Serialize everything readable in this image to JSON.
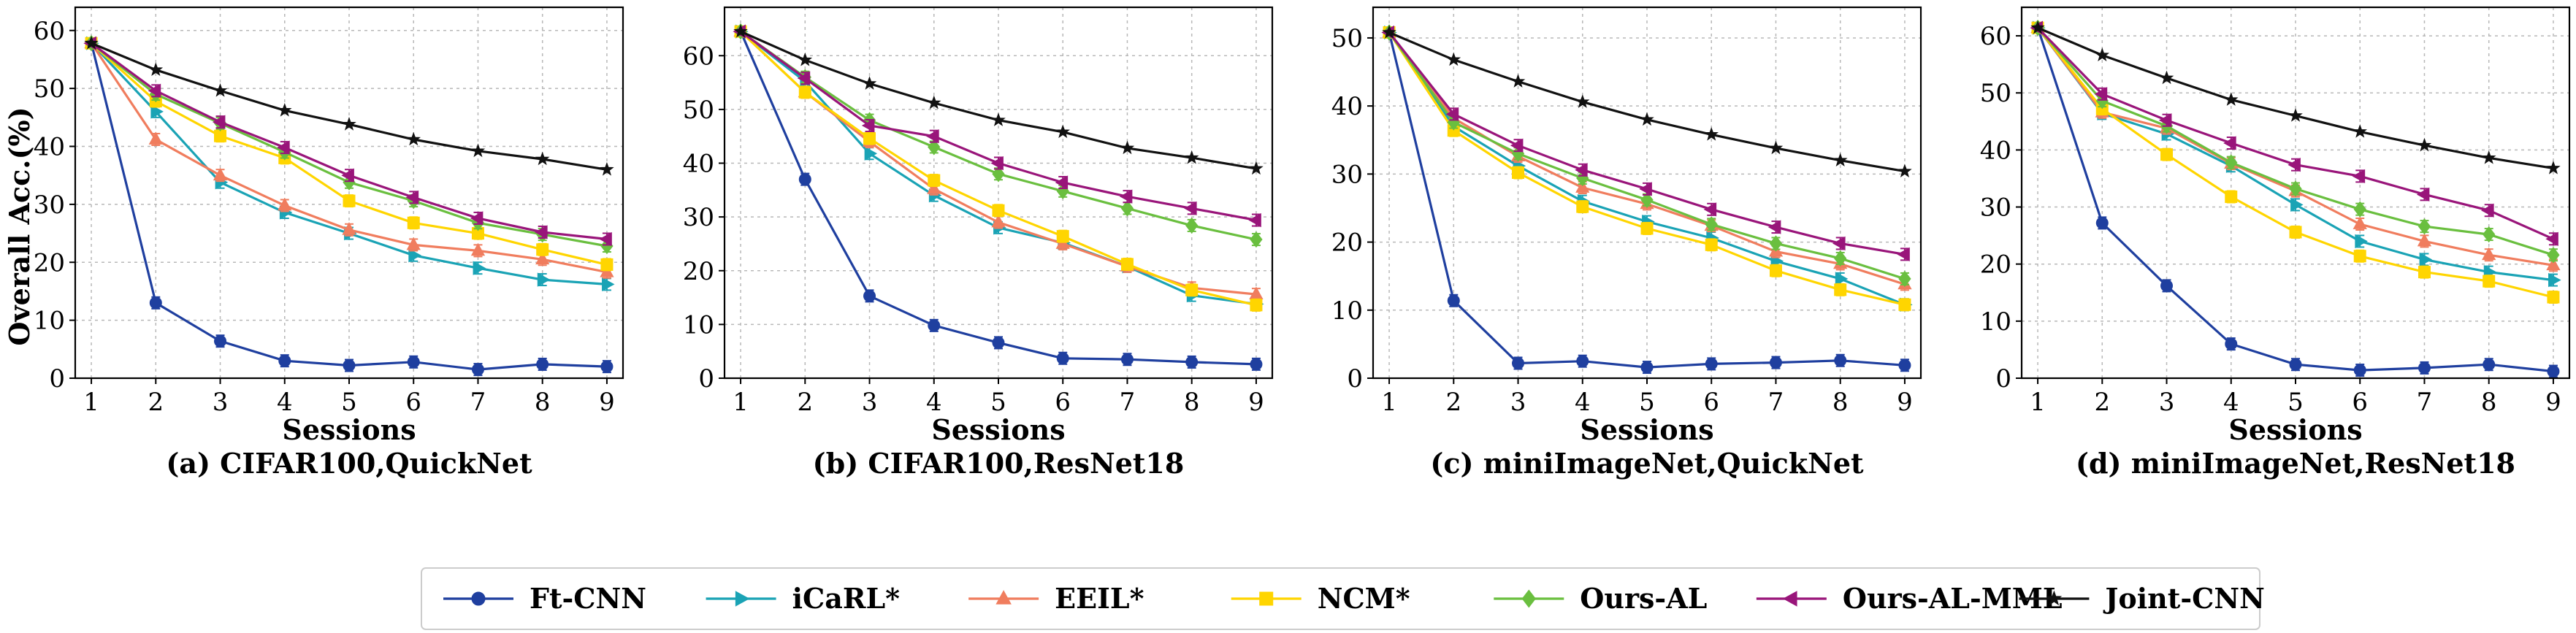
{
  "figure": {
    "ylabel": "Overall Acc.(%)",
    "xlabel": "Sessions"
  },
  "chart_data": [
    {
      "type": "line",
      "caption": "(a) CIFAR100,QuickNet",
      "xlabel": "Sessions",
      "ylabel": "Overall Acc.(%)",
      "x": [
        1,
        2,
        3,
        4,
        5,
        6,
        7,
        8,
        9
      ],
      "ylim": [
        0,
        64
      ],
      "yticks": [
        0,
        10,
        20,
        30,
        40,
        50,
        60
      ],
      "grid": true,
      "series": [
        {
          "name": "Ft-CNN",
          "values": [
            57.8,
            13.0,
            6.4,
            3.0,
            2.2,
            2.8,
            1.5,
            2.4,
            2.0
          ]
        },
        {
          "name": "iCaRL*",
          "values": [
            57.8,
            46.0,
            33.8,
            28.6,
            25.0,
            21.2,
            19.0,
            17.0,
            16.2
          ]
        },
        {
          "name": "EEIL*",
          "values": [
            57.8,
            41.2,
            35.0,
            29.8,
            25.6,
            23.0,
            22.0,
            20.5,
            18.3
          ]
        },
        {
          "name": "NCM*",
          "values": [
            57.8,
            47.8,
            41.8,
            38.0,
            30.6,
            26.8,
            25.0,
            22.2,
            19.6
          ]
        },
        {
          "name": "Ours-AL",
          "values": [
            57.8,
            49.0,
            44.0,
            39.0,
            33.8,
            30.6,
            26.8,
            24.8,
            22.8
          ]
        },
        {
          "name": "Ours-AL-MML",
          "values": [
            57.8,
            49.6,
            44.2,
            39.8,
            35.0,
            31.2,
            27.6,
            25.2,
            24.0
          ]
        },
        {
          "name": "Joint-CNN",
          "values": [
            57.8,
            53.2,
            49.6,
            46.2,
            43.8,
            41.2,
            39.2,
            37.8,
            36.0
          ]
        }
      ]
    },
    {
      "type": "line",
      "caption": "(b) CIFAR100,ResNet18",
      "xlabel": "Sessions",
      "x": [
        1,
        2,
        3,
        4,
        5,
        6,
        7,
        8,
        9
      ],
      "ylim": [
        0,
        69
      ],
      "yticks": [
        0,
        10,
        20,
        30,
        40,
        50,
        60
      ],
      "grid": true,
      "series": [
        {
          "name": "Ft-CNN",
          "values": [
            64.5,
            37.0,
            15.3,
            9.8,
            6.6,
            3.7,
            3.5,
            3.0,
            2.6
          ]
        },
        {
          "name": "iCaRL*",
          "values": [
            64.5,
            55.2,
            41.8,
            34.0,
            28.0,
            25.2,
            20.8,
            15.4,
            13.8
          ]
        },
        {
          "name": "EEIL*",
          "values": [
            64.5,
            53.2,
            44.0,
            35.2,
            29.0,
            25.0,
            20.8,
            16.8,
            15.6
          ]
        },
        {
          "name": "NCM*",
          "values": [
            64.5,
            53.2,
            44.6,
            36.8,
            31.2,
            26.4,
            21.2,
            16.4,
            13.6
          ]
        },
        {
          "name": "Ours-AL",
          "values": [
            64.5,
            56.0,
            48.0,
            43.0,
            38.0,
            34.8,
            31.6,
            28.4,
            25.8
          ]
        },
        {
          "name": "Ours-AL-MML",
          "values": [
            64.5,
            55.8,
            47.0,
            45.0,
            40.0,
            36.4,
            33.8,
            31.6,
            29.4
          ]
        },
        {
          "name": "Joint-CNN",
          "values": [
            64.5,
            59.2,
            54.8,
            51.2,
            48.0,
            45.8,
            42.8,
            41.0,
            39.0
          ]
        }
      ]
    },
    {
      "type": "line",
      "caption": "(c) miniImageNet,QuickNet",
      "xlabel": "Sessions",
      "x": [
        1,
        2,
        3,
        4,
        5,
        6,
        7,
        8,
        9
      ],
      "ylim": [
        0,
        54.5
      ],
      "yticks": [
        0,
        10,
        20,
        30,
        40,
        50
      ],
      "grid": true,
      "series": [
        {
          "name": "Ft-CNN",
          "values": [
            50.8,
            11.4,
            2.2,
            2.5,
            1.6,
            2.1,
            2.3,
            2.6,
            1.9
          ]
        },
        {
          "name": "iCaRL*",
          "values": [
            50.8,
            37.0,
            31.2,
            26.0,
            23.0,
            20.6,
            17.2,
            14.6,
            10.8
          ]
        },
        {
          "name": "EEIL*",
          "values": [
            50.8,
            38.2,
            32.6,
            28.0,
            25.6,
            22.4,
            18.6,
            16.8,
            13.8
          ]
        },
        {
          "name": "NCM*",
          "values": [
            50.8,
            36.4,
            30.2,
            25.2,
            22.0,
            19.6,
            15.8,
            13.0,
            10.8
          ]
        },
        {
          "name": "Ours-AL",
          "values": [
            50.8,
            37.6,
            33.0,
            29.4,
            26.2,
            22.6,
            19.8,
            17.6,
            14.6
          ]
        },
        {
          "name": "Ours-AL-MML",
          "values": [
            50.8,
            38.8,
            34.2,
            30.6,
            27.8,
            24.8,
            22.2,
            19.8,
            18.2
          ]
        },
        {
          "name": "Joint-CNN",
          "values": [
            50.8,
            46.8,
            43.6,
            40.6,
            38.0,
            35.8,
            33.8,
            32.0,
            30.4
          ]
        }
      ]
    },
    {
      "type": "line",
      "caption": "(d) miniImageNet,ResNet18",
      "xlabel": "Sessions",
      "x": [
        1,
        2,
        3,
        4,
        5,
        6,
        7,
        8,
        9
      ],
      "ylim": [
        0,
        65
      ],
      "yticks": [
        0,
        10,
        20,
        30,
        40,
        50,
        60
      ],
      "grid": true,
      "series": [
        {
          "name": "Ft-CNN",
          "values": [
            61.4,
            27.2,
            16.2,
            6.0,
            2.4,
            1.4,
            1.8,
            2.4,
            1.2
          ]
        },
        {
          "name": "iCaRL*",
          "values": [
            61.4,
            46.4,
            42.8,
            37.2,
            30.4,
            24.0,
            20.8,
            18.6,
            17.2
          ]
        },
        {
          "name": "EEIL*",
          "values": [
            61.4,
            46.6,
            43.8,
            37.6,
            32.8,
            27.0,
            24.0,
            21.6,
            19.8
          ]
        },
        {
          "name": "NCM*",
          "values": [
            61.4,
            47.2,
            39.2,
            31.8,
            25.6,
            21.4,
            18.6,
            17.0,
            14.2
          ]
        },
        {
          "name": "Ours-AL",
          "values": [
            61.4,
            48.6,
            44.2,
            37.8,
            33.2,
            29.6,
            26.6,
            25.2,
            21.6
          ]
        },
        {
          "name": "Ours-AL-MML",
          "values": [
            61.4,
            49.8,
            45.2,
            41.2,
            37.4,
            35.4,
            32.2,
            29.4,
            24.4
          ]
        },
        {
          "name": "Joint-CNN",
          "values": [
            61.4,
            56.6,
            52.6,
            48.8,
            46.0,
            43.2,
            40.8,
            38.6,
            36.8
          ]
        }
      ]
    }
  ],
  "legend": {
    "placement": "bottom-center",
    "entries": [
      {
        "label": "Ft-CNN",
        "color": "#1f3f9f",
        "marker": "circle"
      },
      {
        "label": "iCaRL*",
        "color": "#1aa3b5",
        "marker": "triangle-right"
      },
      {
        "label": "EEIL*",
        "color": "#f07d5e",
        "marker": "triangle-up"
      },
      {
        "label": "NCM*",
        "color": "#ffd500",
        "marker": "square"
      },
      {
        "label": "Ours-AL",
        "color": "#6abf3f",
        "marker": "diamond"
      },
      {
        "label": "Ours-AL-MML",
        "color": "#99157a",
        "marker": "triangle-left"
      },
      {
        "label": "Joint-CNN",
        "color": "#111111",
        "marker": "star"
      }
    ]
  }
}
